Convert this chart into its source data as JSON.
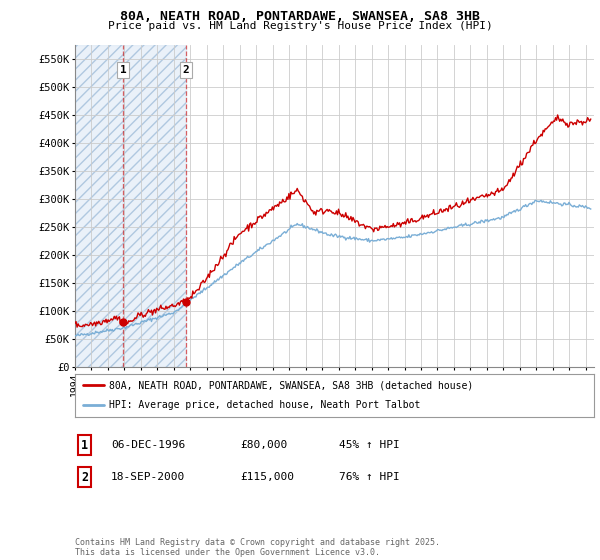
{
  "title1": "80A, NEATH ROAD, PONTARDAWE, SWANSEA, SA8 3HB",
  "title2": "Price paid vs. HM Land Registry's House Price Index (HPI)",
  "hpi_color": "#7aaed6",
  "price_color": "#cc0000",
  "purchase1_date": 1996.93,
  "purchase1_price": 80000,
  "purchase2_date": 2000.72,
  "purchase2_price": 115000,
  "shade1_start": 1994.0,
  "shade1_end": 1996.93,
  "shade2_start": 1996.93,
  "shade2_end": 2000.72,
  "xlim_start": 1994.0,
  "xlim_end": 2025.5,
  "ylim_min": 0,
  "ylim_max": 575000,
  "yticks": [
    0,
    50000,
    100000,
    150000,
    200000,
    250000,
    300000,
    350000,
    400000,
    450000,
    500000,
    550000
  ],
  "ytick_labels": [
    "£0",
    "£50K",
    "£100K",
    "£150K",
    "£200K",
    "£250K",
    "£300K",
    "£350K",
    "£400K",
    "£450K",
    "£500K",
    "£550K"
  ],
  "legend_red_label": "80A, NEATH ROAD, PONTARDAWE, SWANSEA, SA8 3HB (detached house)",
  "legend_blue_label": "HPI: Average price, detached house, Neath Port Talbot",
  "table_row1": [
    "1",
    "06-DEC-1996",
    "£80,000",
    "45% ↑ HPI"
  ],
  "table_row2": [
    "2",
    "18-SEP-2000",
    "£115,000",
    "76% ↑ HPI"
  ],
  "footnote": "Contains HM Land Registry data © Crown copyright and database right 2025.\nThis data is licensed under the Open Government Licence v3.0.",
  "bg_color": "#ffffff",
  "grid_color": "#cccccc",
  "shade_hatch_color": "#d0d8e8",
  "shade_between_color": "#dce8f5"
}
